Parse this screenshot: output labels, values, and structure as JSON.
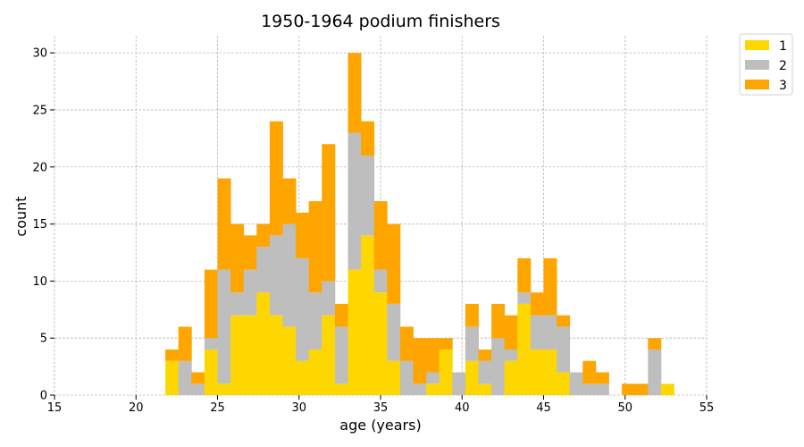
{
  "chart_data": {
    "type": "bar",
    "stacked": true,
    "title": "1950-1964 podium finishers",
    "xlabel": "age (years)",
    "ylabel": "count",
    "xlim": [
      15,
      55
    ],
    "ylim": [
      0,
      31.5
    ],
    "x_ticks": [
      15,
      20,
      25,
      30,
      35,
      40,
      45,
      50,
      55
    ],
    "y_ticks": [
      0,
      5,
      10,
      15,
      20,
      25,
      30
    ],
    "grid": true,
    "legend_position": "outside top-right",
    "bin_width": 0.8,
    "bin_starts": [
      21.8,
      22.6,
      23.4,
      24.2,
      25.0,
      25.8,
      26.6,
      27.4,
      28.2,
      29.0,
      29.8,
      30.6,
      31.4,
      32.2,
      33.0,
      33.8,
      34.6,
      35.4,
      36.2,
      37.0,
      37.8,
      38.6,
      39.4,
      40.2,
      41.0,
      41.8,
      42.6,
      43.4,
      44.2,
      45.0,
      45.8,
      46.6,
      47.4,
      48.2,
      49.0,
      49.8,
      50.6,
      51.4,
      52.2
    ],
    "series": [
      {
        "name": "1",
        "color": "#FFD700",
        "values": [
          3,
          0,
          0,
          4,
          1,
          7,
          7,
          9,
          7,
          6,
          3,
          4,
          7,
          1,
          11,
          14,
          9,
          3,
          0,
          0,
          1,
          4,
          0,
          3,
          1,
          0,
          3,
          8,
          4,
          4,
          2,
          0,
          0,
          0,
          0,
          0,
          0,
          0,
          1
        ]
      },
      {
        "name": "2",
        "color": "#BEBEBE",
        "values": [
          0,
          3,
          1,
          1,
          10,
          2,
          4,
          4,
          7,
          9,
          9,
          5,
          3,
          5,
          12,
          7,
          2,
          5,
          3,
          1,
          1,
          0,
          2,
          3,
          2,
          5,
          1,
          1,
          3,
          3,
          4,
          2,
          1,
          1,
          0,
          0,
          0,
          4,
          0
        ]
      },
      {
        "name": "3",
        "color": "#FFA500",
        "values": [
          1,
          3,
          1,
          6,
          8,
          6,
          3,
          2,
          10,
          4,
          4,
          8,
          12,
          2,
          7,
          3,
          6,
          7,
          3,
          4,
          3,
          1,
          0,
          2,
          1,
          3,
          3,
          3,
          2,
          5,
          1,
          0,
          2,
          1,
          0,
          1,
          1,
          1,
          0
        ]
      }
    ]
  }
}
